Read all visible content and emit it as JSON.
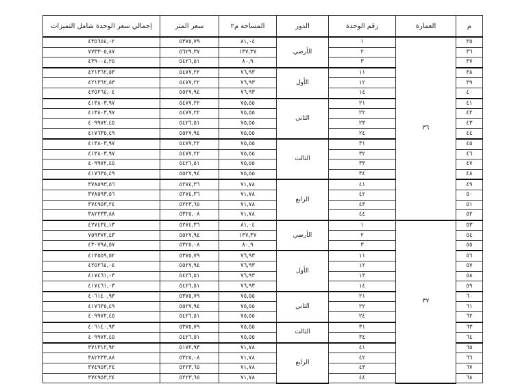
{
  "headers": {
    "m": "م",
    "building": "العمارة",
    "unit": "رقم الوحدة",
    "floor": "الدور",
    "area": "المساحة م٢",
    "price": "سعر المتر",
    "total": "إجمالي سعر الوحدة شامل التميزات"
  },
  "buildings": [
    {
      "name": "٣٦",
      "floors": [
        {
          "name": "الأرضي",
          "units": [
            {
              "m": "٣٥",
              "unit": "١",
              "area": "٨١,٠٤",
              "price": "٥٣٧٥,٧٩",
              "total": "٤٣٥٦٥٤,٠٢"
            },
            {
              "m": "٣٦",
              "unit": "٢",
              "area": "١٣٧,٣٧",
              "price": "٥٦٢٩,٣٧",
              "total": "٧٧٣٣٠٥,٨٧"
            },
            {
              "m": "٣٧",
              "unit": "٣",
              "area": "٨٠,٩",
              "price": "٥٤٢٦,٥١",
              "total": "٤٣٩٠٠٤,٢٥"
            }
          ]
        },
        {
          "name": "الأول",
          "units": [
            {
              "m": "٣٨",
              "unit": "١١",
              "area": "٧٦,٩٣",
              "price": "٥٤٧٧,٢٢",
              "total": "٤٢١٣٦٢,٥٣"
            },
            {
              "m": "٣٩",
              "unit": "١٢",
              "area": "٧٦,٩٣",
              "price": "٥٤٧٧,٢٢",
              "total": "٤٢١٣٦٢,٥٣"
            },
            {
              "m": "٤٠",
              "unit": "١٤",
              "area": "٧٦,٩٣",
              "price": "٥٥٢٧,٩٤",
              "total": "٤٢٥٢٦٤,٠٤"
            }
          ]
        },
        {
          "name": "الثاني",
          "units": [
            {
              "m": "٤١",
              "unit": "٢١",
              "area": "٧٥,٥٥",
              "price": "٥٤٧٧,٢٢",
              "total": "٤١٣٨٠٣,٩٧"
            },
            {
              "m": "٤٢",
              "unit": "٢٢",
              "area": "٧٥,٥٥",
              "price": "٥٤٧٧,٢٢",
              "total": "٤١٣٨٠٣,٩٧"
            },
            {
              "m": "٤٣",
              "unit": "٢٣",
              "area": "٧٥,٥٥",
              "price": "٥٤٢٦,٥١",
              "total": "٤٠٩٩٧٢,٤٥"
            },
            {
              "m": "٤٤",
              "unit": "٢٤",
              "area": "٧٥,٥٥",
              "price": "٥٥٢٧,٩٤",
              "total": "٤١٧٦٣٥,٤٩"
            }
          ]
        },
        {
          "name": "الثالث",
          "units": [
            {
              "m": "٤٥",
              "unit": "٣١",
              "area": "٧٥,٥٥",
              "price": "٥٤٧٧,٢٢",
              "total": "٤١٣٨٠٣,٩٧"
            },
            {
              "m": "٤٦",
              "unit": "٣٢",
              "area": "٧٥,٥٥",
              "price": "٥٤٧٧,٢٢",
              "total": "٤١٣٨٠٣,٩٧"
            },
            {
              "m": "٤٧",
              "unit": "٣٣",
              "area": "٧٥,٥٥",
              "price": "٥٤٢٦,٥١",
              "total": "٤٠٩٩٧٢,٤٥"
            },
            {
              "m": "٤٨",
              "unit": "٣٤",
              "area": "٧٥,٥٥",
              "price": "٥٥٢٧,٩٤",
              "total": "٤١٧٦٣٥,٤٩"
            }
          ]
        },
        {
          "name": "الرابع",
          "units": [
            {
              "m": "٤٩",
              "unit": "٤١",
              "area": "٧١,٧٨",
              "price": "٥٢٧٤,٣٦",
              "total": "٣٧٨٥٩٣,٥٦"
            },
            {
              "m": "٥٠",
              "unit": "٤٢",
              "area": "٧١,٧٨",
              "price": "٥٢٧٤,٣٦",
              "total": "٣٧٨٥٩٣,٥٦"
            },
            {
              "m": "٥١",
              "unit": "٤٣",
              "area": "٧١,٧٨",
              "price": "٥٢٢٣,٦٥",
              "total": "٣٧٤٩٥٣,٢٤"
            },
            {
              "m": "٥٢",
              "unit": "٤٤",
              "area": "٧١,٧٨",
              "price": "٥٣٢٥,٠٨",
              "total": "٣٨٢٢٣٣,٨٨"
            }
          ]
        }
      ]
    },
    {
      "name": "٣٧",
      "floors": [
        {
          "name": "الأرضي",
          "units": [
            {
              "m": "٥٣",
              "unit": "١",
              "area": "٨١,٠٤",
              "price": "٥٢٧٤,٣٦",
              "total": "٤٢٧٤٣٤,١٣"
            },
            {
              "m": "٥٤",
              "unit": "٢",
              "area": "١٣٧,٣٧",
              "price": "٥٥٢٧,٩٤",
              "total": "٧٥٩٣٧٢,٤٣"
            },
            {
              "m": "٥٥",
              "unit": "٣",
              "area": "٨٠,٩",
              "price": "٥٣٢٥,٠٨",
              "total": "٤٣٠٧٩٨,٥٧"
            }
          ]
        },
        {
          "name": "الأول",
          "units": [
            {
              "m": "٥٦",
              "unit": "١١",
              "area": "٧٦,٩٣",
              "price": "٥٣٧٥,٧٩",
              "total": "٤١٣٥٥٩,٥٢"
            },
            {
              "m": "٥٧",
              "unit": "١٢",
              "area": "٧٦,٩٣",
              "price": "٥٥٢٧,٩٤",
              "total": "٤٢٥٢٦٤,٠٤"
            },
            {
              "m": "٥٨",
              "unit": "١٣",
              "area": "٧٦,٩٣",
              "price": "٥٤٢٦,٥١",
              "total": "٤١٧٤٦١,٠٣"
            },
            {
              "m": "٥٩",
              "unit": "١٤",
              "area": "٧٦,٩٣",
              "price": "٥٤٢٦,٥١",
              "total": "٤١٧٤٦١,٠٣"
            }
          ]
        },
        {
          "name": "الثاني",
          "units": [
            {
              "m": "٦٠",
              "unit": "٢١",
              "area": "٧٥,٥٥",
              "price": "٥٣٧٥,٧٩",
              "total": "٤٠٦١٤٠,٩٣"
            },
            {
              "m": "٦١",
              "unit": "٢٢",
              "area": "٧٥,٥٥",
              "price": "٥٥٢٧,٩٤",
              "total": "٤١٧٦٣٥,٤٩"
            },
            {
              "m": "٦٢",
              "unit": "٢٤",
              "area": "٧٥,٥٥",
              "price": "٥٤٢٦,٥١",
              "total": "٤٠٩٩٧٢,٤٥"
            }
          ]
        },
        {
          "name": "الثالث",
          "units": [
            {
              "m": "٦٣",
              "unit": "٣١",
              "area": "٧٥,٥٥",
              "price": "٥٣٧٥,٧٩",
              "total": "٤٠٦١٤٠,٩٣"
            },
            {
              "m": "٦٤",
              "unit": "٣٤",
              "area": "٧٥,٥٥",
              "price": "٥٤٢٦,٥١",
              "total": "٤٠٩٩٧٢,٤٥"
            }
          ]
        },
        {
          "name": "الرابع",
          "units": [
            {
              "m": "٦٥",
              "unit": "٤١",
              "area": "٧١,٧٨",
              "price": "٥١٧٢,٩٣",
              "total": "٣٧١٣١٢,٩٢"
            },
            {
              "m": "٦٦",
              "unit": "٤٢",
              "area": "٧١,٧٨",
              "price": "٥٣٢٥,٠٨",
              "total": "٣٨٢٢٣٣,٨٨"
            },
            {
              "m": "٦٧",
              "unit": "٤٣",
              "area": "٧١,٧٨",
              "price": "٥٢٢٣,٦٥",
              "total": "٣٧٤٩٥٣,٢٤"
            },
            {
              "m": "٦٨",
              "unit": "٤٤",
              "area": "٧١,٧٨",
              "price": "٥٢٢٣,٦٥",
              "total": "٣٧٤٩٥٣,٢٤"
            }
          ]
        }
      ]
    }
  ]
}
